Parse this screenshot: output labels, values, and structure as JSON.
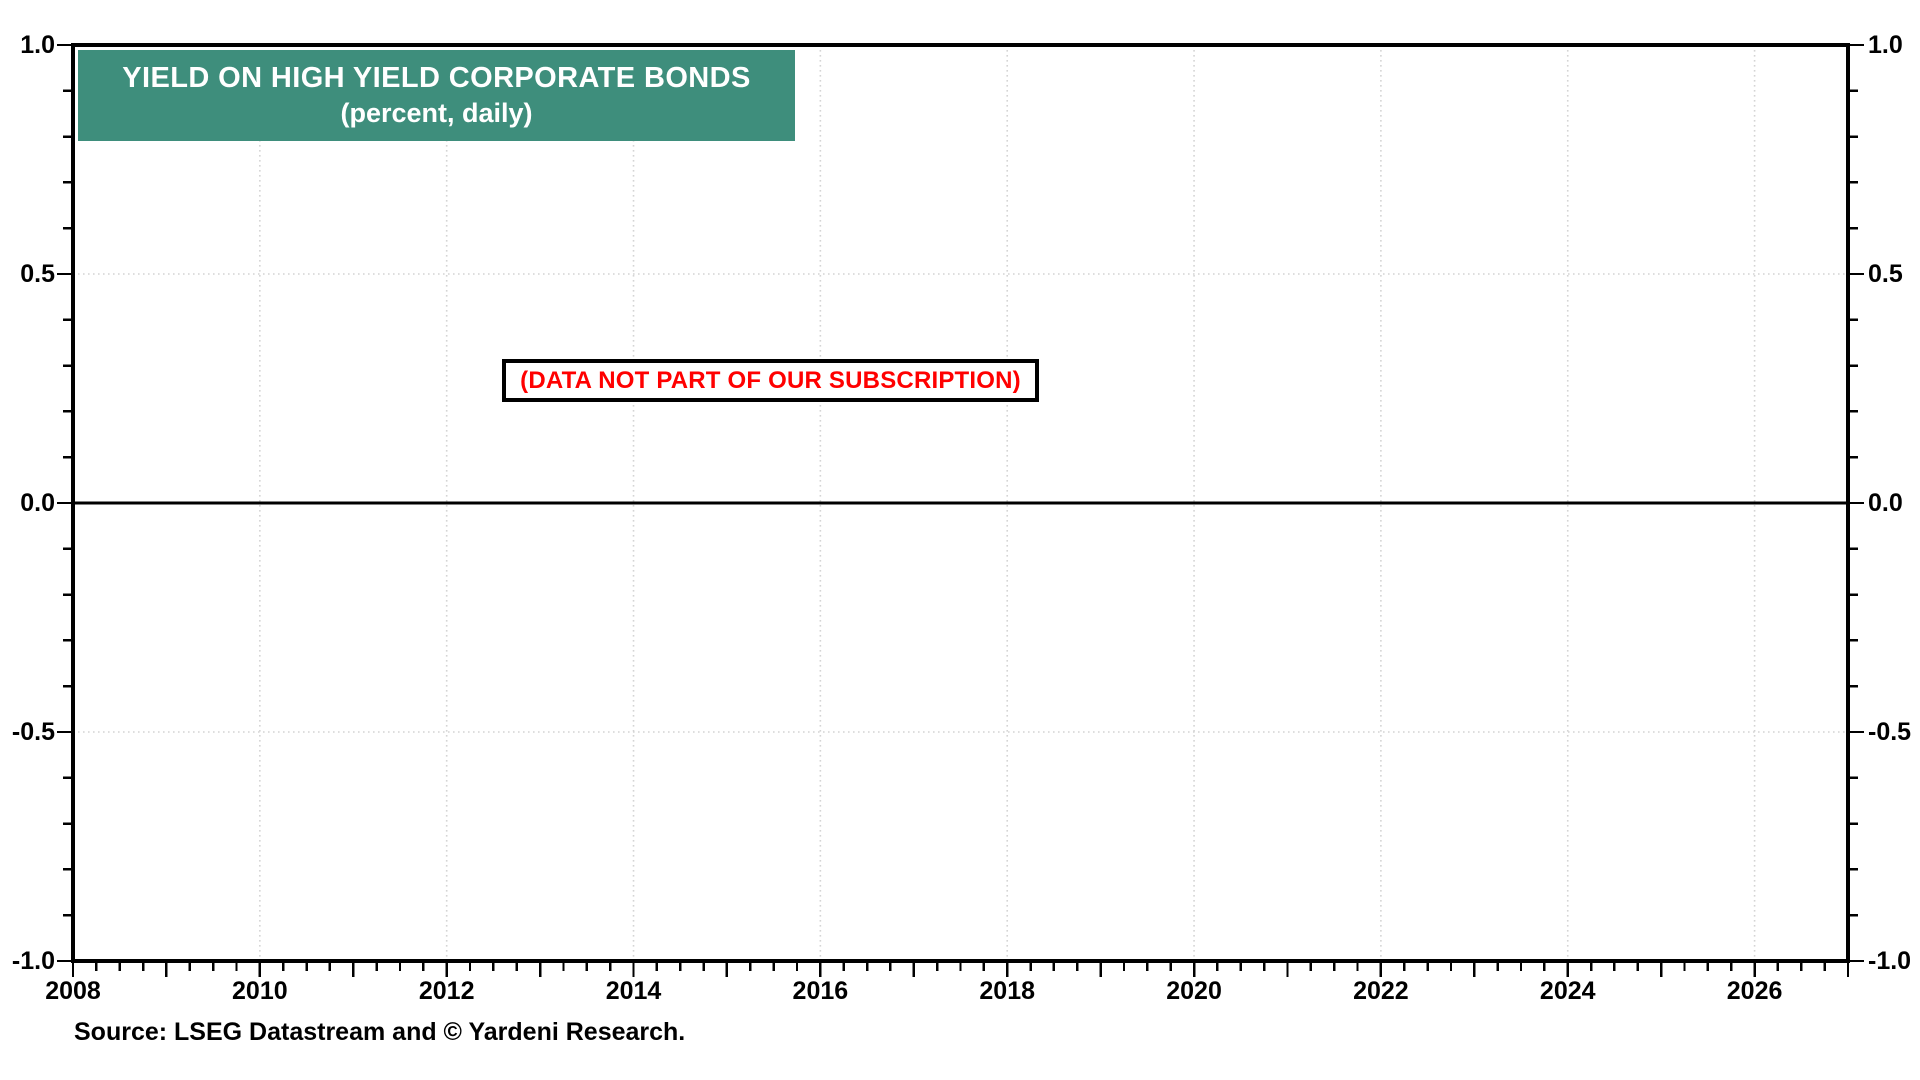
{
  "header": {
    "title": "YIELD ON HIGH YIELD CORPORATE BONDS",
    "subtitle": "(percent, daily)",
    "bg_color": "#3E8E7C",
    "text_color": "#FFFFFF"
  },
  "annotation": {
    "text": "(DATA NOT PART OF OUR SUBSCRIPTION)",
    "text_color": "#FF0000",
    "border_color": "#000000",
    "bg_color": "#FFFFFF"
  },
  "source": {
    "text": "Source: LSEG Datastream and © Yardeni Research."
  },
  "colors": {
    "axis": "#000000",
    "grid": "#D4D4D4",
    "background": "#FFFFFF"
  },
  "chart_data": {
    "type": "line",
    "title": "YIELD ON HIGH YIELD CORPORATE BONDS",
    "subtitle": "(percent, daily)",
    "series": [],
    "note": "(DATA NOT PART OF OUR SUBSCRIPTION)",
    "legend": "none",
    "grid": "dotted",
    "x_axis": {
      "min": 2008,
      "max": 2027,
      "labeled_ticks": [
        2008,
        2010,
        2012,
        2014,
        2016,
        2018,
        2020,
        2022,
        2024,
        2026
      ],
      "major_tick_step_years": 1,
      "minor_tick_step_years": 0.25,
      "gridline_years": [
        2010,
        2012,
        2014,
        2016,
        2018,
        2020,
        2022,
        2024,
        2026
      ]
    },
    "y_axis": {
      "min": -1.0,
      "max": 1.0,
      "labeled_ticks": [
        1.0,
        0.5,
        0.0,
        -0.5,
        -1.0
      ],
      "tick_labels": [
        "1.0",
        "0.5",
        "0.0",
        "-0.5",
        "-1.0"
      ],
      "minor_tick_step": 0.1,
      "gridlines": [
        0.5,
        -0.5
      ],
      "zero_line": 0.0,
      "sides": [
        "left",
        "right"
      ]
    }
  }
}
